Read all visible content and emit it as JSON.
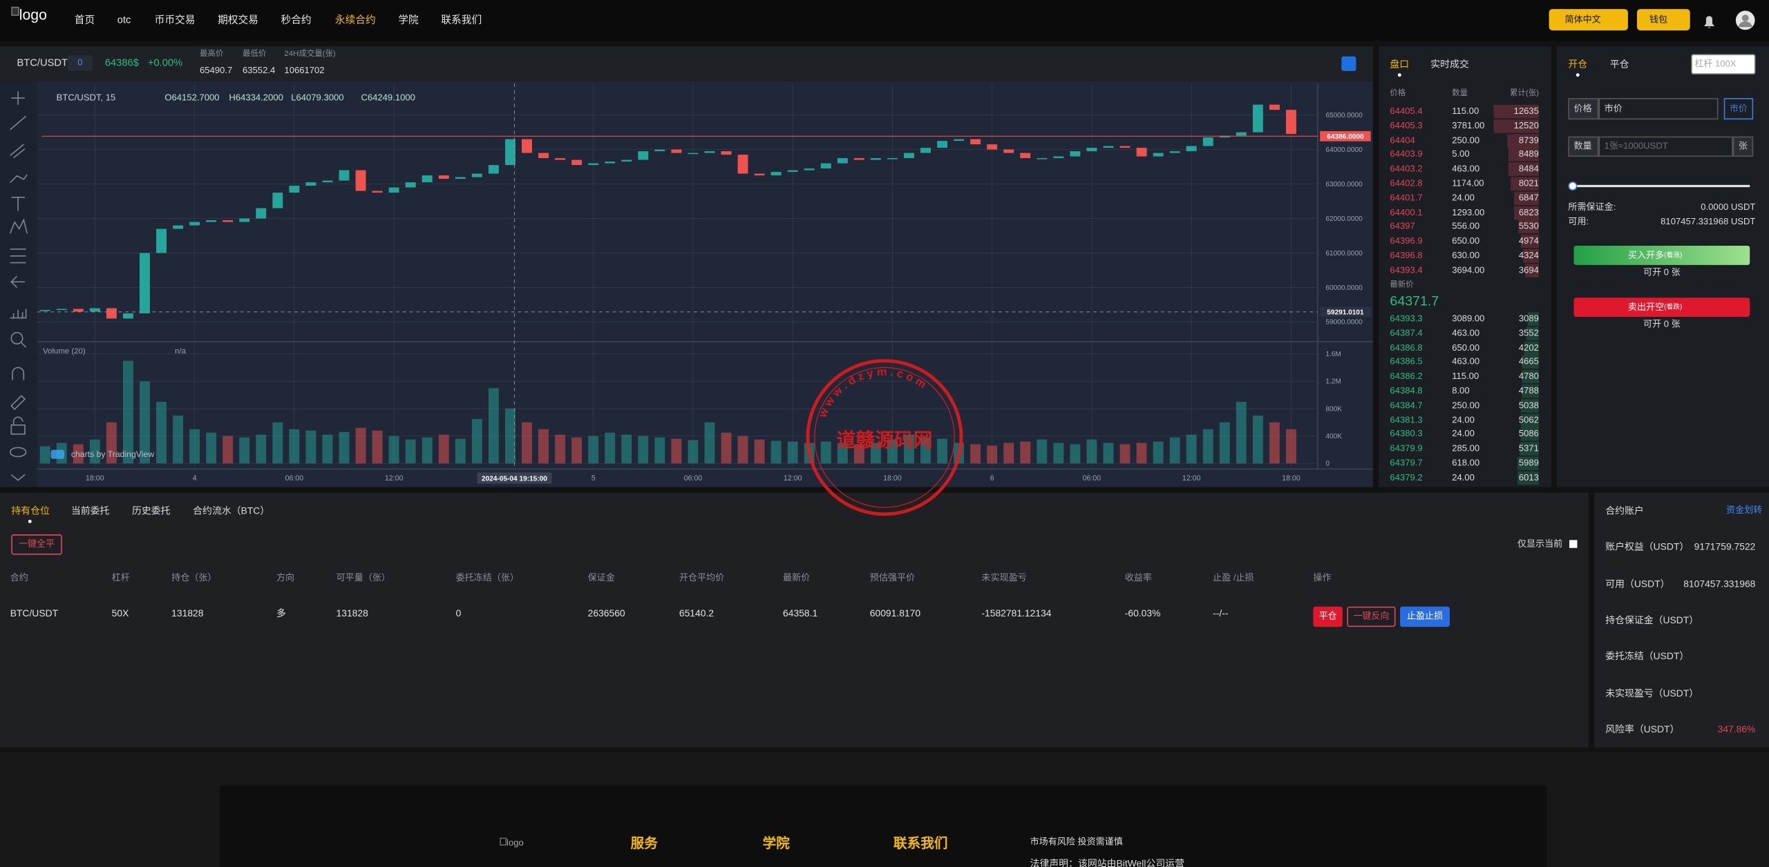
{
  "nav": {
    "logo": "logo",
    "menu": [
      "首页",
      "otc",
      "币币交易",
      "期权交易",
      "秒合约",
      "永续合约",
      "学院",
      "联系我们"
    ],
    "language": "简体中文",
    "wallet": "钱包"
  },
  "ticker": {
    "pair": "BTC/USDT",
    "badge": "0",
    "price": "64386$",
    "change": "+0.00%",
    "stats": [
      {
        "label": "最高价",
        "value": "65490.7"
      },
      {
        "label": "最低价",
        "value": "63552.4"
      },
      {
        "label": "24H成交量(张)",
        "value": "10661702"
      }
    ]
  },
  "chart": {
    "type": "candlestick",
    "legend": "BTC/USDT, 15",
    "ohlc": [
      "O64152.7000",
      "H64334.2000",
      "L64079.3000",
      "C64249.1000"
    ],
    "volume_label": "Volume (20)",
    "volume_value": "n/a",
    "attribution": "charts by TradingView",
    "x": [
      -3,
      -2,
      -1,
      0,
      1,
      2,
      3,
      4,
      5,
      6,
      7,
      8,
      9,
      10,
      11,
      12,
      13,
      14,
      15,
      16,
      17,
      18,
      19,
      20,
      21,
      22,
      23,
      24,
      25,
      26,
      27,
      28,
      29,
      30,
      31,
      32,
      33,
      34,
      35,
      36,
      37,
      38,
      39,
      40,
      41,
      42,
      43,
      44,
      45,
      46,
      47,
      48,
      49,
      50,
      51,
      52,
      53,
      54,
      55,
      56,
      57,
      58,
      59,
      60,
      61,
      62,
      63,
      64,
      65,
      66,
      67,
      68,
      69,
      70,
      71,
      72
    ],
    "close": [
      59350,
      59380,
      59300,
      59400,
      59100,
      59250,
      61000,
      61700,
      61800,
      61900,
      61950,
      61900,
      62000,
      62300,
      62750,
      62950,
      63050,
      63100,
      63400,
      62800,
      62750,
      62900,
      63050,
      63250,
      63150,
      63200,
      63300,
      63550,
      64300,
      63900,
      63750,
      63700,
      63550,
      63600,
      63650,
      63700,
      63950,
      64000,
      63900,
      63900,
      63950,
      63850,
      63300,
      63250,
      63350,
      63400,
      63450,
      63600,
      63750,
      63700,
      63750,
      63750,
      63900,
      64050,
      64250,
      64300,
      64150,
      64000,
      63900,
      63750,
      63750,
      63800,
      63950,
      64050,
      64100,
      64050,
      63800,
      63900,
      63950,
      64100,
      64350,
      64400,
      64500,
      65300,
      65150,
      64450
    ],
    "volume": [
      250000,
      300000,
      280000,
      350000,
      600000,
      1500000,
      1200000,
      900000,
      700000,
      500000,
      450000,
      400000,
      380000,
      420000,
      600000,
      500000,
      480000,
      420000,
      460000,
      520000,
      480000,
      400000,
      350000,
      380000,
      420000,
      360000,
      650000,
      1100000,
      800000,
      600000,
      500000,
      420000,
      380000,
      400000,
      450000,
      420000,
      400000,
      380000,
      360000,
      340000,
      600000,
      450000,
      400000,
      350000,
      330000,
      320000,
      300000,
      320000,
      300000,
      280000,
      300000,
      350000,
      420000,
      380000,
      360000,
      300000,
      280000,
      260000,
      300000,
      320000,
      350000,
      300000,
      280000,
      350000,
      300000,
      280000,
      300000,
      320000,
      380000,
      420000,
      500000,
      600000,
      900000,
      700000,
      600000,
      500000
    ],
    "xlim": [
      -3.2,
      73.6
    ],
    "xticks": [
      {
        "value": 0,
        "label": "18:00"
      },
      {
        "value": 6,
        "label": "4"
      },
      {
        "value": 12,
        "label": "06:00"
      },
      {
        "value": 18,
        "label": "12:00"
      },
      {
        "value": 30,
        "label": "5"
      },
      {
        "value": 36,
        "label": "06:00"
      },
      {
        "value": 42,
        "label": "12:00"
      },
      {
        "value": 48,
        "label": "18:00"
      },
      {
        "value": 54,
        "label": "6"
      },
      {
        "value": 60,
        "label": "06:00"
      },
      {
        "value": 66,
        "label": "12:00"
      },
      {
        "value": 72,
        "label": "18:00"
      }
    ],
    "ylim": [
      58464,
      65850
    ],
    "yticks": [
      {
        "value": 65000,
        "label": "65000.0000"
      },
      {
        "value": 64000,
        "label": "64000.0000"
      },
      {
        "value": 63000,
        "label": "63000.0000"
      },
      {
        "value": 62000,
        "label": "62000.0000"
      },
      {
        "value": 61000,
        "label": "61000.0000"
      },
      {
        "value": 60000,
        "label": "60000.0000"
      },
      {
        "value": 59000,
        "label": "59000.0000"
      }
    ],
    "volume_ylim": [
      -82000,
      1780000
    ],
    "volume_yticks": [
      {
        "value": 1600000,
        "label": "1.6M"
      },
      {
        "value": 1200000,
        "label": "1.2M"
      },
      {
        "value": 800000,
        "label": "800K"
      },
      {
        "value": 400000,
        "label": "400K"
      },
      0
    ],
    "last_price": {
      "value": 64386,
      "label": "64386.0000"
    },
    "crosshair": {
      "price": 59291.0101,
      "time": {
        "value": 25.25,
        "label": "2024-05-04 19:15:00"
      }
    },
    "up_color": "#26a69a",
    "down_color": "#ef5350"
  },
  "orderbook": {
    "tabs": [
      "盘口",
      "实时成交"
    ],
    "headers": [
      "价格",
      "数量",
      "累计(张)"
    ],
    "asks": [
      [
        "64405.4",
        "115.00",
        "12635"
      ],
      [
        "64405.3",
        "3781.00",
        "12520"
      ],
      [
        "64404",
        "250.00",
        "8739"
      ],
      [
        "64403.9",
        "5.00",
        "8489"
      ],
      [
        "64403.2",
        "463.00",
        "8484"
      ],
      [
        "64402.8",
        "1174.00",
        "8021"
      ],
      [
        "64401.7",
        "24.00",
        "6847"
      ],
      [
        "64400.1",
        "1293.00",
        "6823"
      ],
      [
        "64397",
        "556.00",
        "5530"
      ],
      [
        "64396.9",
        "650.00",
        "4974"
      ],
      [
        "64396.8",
        "630.00",
        "4324"
      ],
      [
        "64393.4",
        "3694.00",
        "3694"
      ]
    ],
    "last_label": "最新价",
    "last_price": "64371.7",
    "bids": [
      [
        "64393.3",
        "3089.00",
        "3089"
      ],
      [
        "64387.4",
        "463.00",
        "3552"
      ],
      [
        "64386.8",
        "650.00",
        "4202"
      ],
      [
        "64386.5",
        "463.00",
        "4665"
      ],
      [
        "64386.2",
        "115.00",
        "4780"
      ],
      [
        "64384.8",
        "8.00",
        "4788"
      ],
      [
        "64384.7",
        "250.00",
        "5038"
      ],
      [
        "64381.3",
        "24.00",
        "5062"
      ],
      [
        "64380.3",
        "24.00",
        "5086"
      ],
      [
        "64379.9",
        "285.00",
        "5371"
      ],
      [
        "64379.7",
        "618.00",
        "5989"
      ],
      [
        "64379.2",
        "24.00",
        "6013"
      ]
    ]
  },
  "order": {
    "tabs": [
      "开仓",
      "平仓"
    ],
    "leverage": "杠杆 100X",
    "price_label": "价格",
    "price_value": "市价",
    "market_btn": "市价",
    "qty_label": "数量",
    "qty_placeholder": "1张≈1000USDT",
    "qty_unit": "张",
    "margin_label": "所需保证金:",
    "margin_value": "0.0000 USDT",
    "available_label": "可用:",
    "available_value": "8107457.331968 USDT",
    "buy": "买入开多",
    "buy_hint": "(看涨)",
    "buy_can": "可开 0 张",
    "sell": "卖出开空",
    "sell_hint": "(看跌)",
    "sell_can": "可开 0 张"
  },
  "positions": {
    "tabs": [
      "持有仓位",
      "当前委托",
      "历史委托",
      "合约流水（BTC）"
    ],
    "close_all": "一键全平",
    "only_current": "仅显示当前",
    "headers": [
      "合约",
      "杠杆",
      "持仓（张）",
      "方向",
      "可平量（张）",
      "委托冻结（张）",
      "保证金",
      "开仓平均价",
      "最新价",
      "预估强平价",
      "未实现盈亏",
      "收益率",
      "止盈 /止损",
      "操作"
    ],
    "rows": [
      [
        "BTC/USDT",
        "50X",
        "131828",
        "多",
        "131828",
        "0",
        "2636560",
        "65140.2",
        "64358.1",
        "60091.8170",
        "-1582781.12134",
        "-60.03%",
        "--/--"
      ]
    ],
    "actions": [
      "平仓",
      "一键反向",
      "止盈止损"
    ]
  },
  "account": {
    "title": "合约账户",
    "transfer": "资金划转",
    "rows": [
      {
        "label": "账户权益（USDT）",
        "value": "9171759.7522"
      },
      {
        "label": "可用（USDT）",
        "value": "8107457.331968"
      },
      {
        "label": "持仓保证金（USDT）"
      },
      {
        "label": "委托冻结（USDT）"
      },
      {
        "label": "未实现盈亏（USDT）"
      },
      {
        "label": "风险率（USDT）",
        "value": "347.86%"
      }
    ]
  },
  "footer": {
    "logo": "logo",
    "columns": [
      "服务",
      "学院",
      "联系我们"
    ],
    "risk": "市场有风险 投资需谨慎",
    "legal": "法律声明：该网站由BitWell公司运营"
  },
  "watermark": {
    "name": "道赣源码网",
    "url": "w w w . d z y m . c o m"
  }
}
